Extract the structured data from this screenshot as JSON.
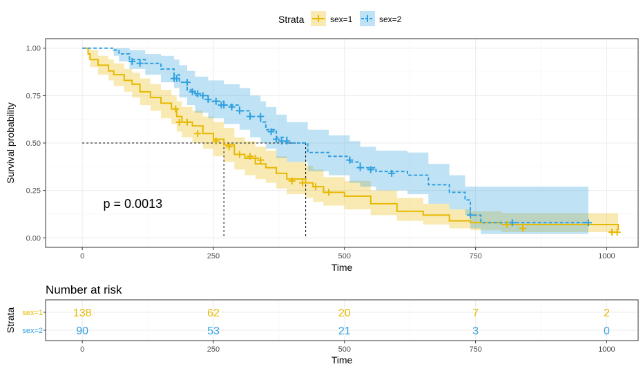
{
  "chart_data": [
    {
      "type": "line",
      "subtype": "kaplan-meier",
      "xlabel": "Time",
      "ylabel": "Survival probability",
      "xlim": [
        -70,
        1060
      ],
      "ylim": [
        -0.05,
        1.05
      ],
      "xticks": [
        0,
        250,
        500,
        750,
        1000
      ],
      "xtick_labels": [
        "0",
        "250",
        "500",
        "750",
        "1000"
      ],
      "yticks": [
        0,
        0.25,
        0.5,
        0.75,
        1
      ],
      "ytick_labels": [
        "0.00",
        "0.25",
        "0.50",
        "0.75",
        "1.00"
      ],
      "grid": true,
      "legend": {
        "title": "Strata",
        "position": "top",
        "entries": [
          "sex=1",
          "sex=2"
        ]
      },
      "annotation": "p = 0.0013",
      "median_survival": {
        "y": 0.5,
        "x": [
          270,
          426
        ]
      },
      "series": [
        {
          "name": "sex=1",
          "color": "#E7B800",
          "linestyle": "solid",
          "x": [
            0,
            11,
            15,
            30,
            50,
            60,
            80,
            95,
            110,
            130,
            150,
            170,
            180,
            190,
            210,
            230,
            250,
            270,
            290,
            310,
            330,
            350,
            370,
            390,
            426,
            440,
            460,
            500,
            550,
            600,
            650,
            700,
            740,
            800,
            1022
          ],
          "y": [
            1.0,
            0.97,
            0.94,
            0.91,
            0.88,
            0.86,
            0.83,
            0.81,
            0.77,
            0.74,
            0.71,
            0.68,
            0.64,
            0.61,
            0.59,
            0.55,
            0.52,
            0.49,
            0.44,
            0.42,
            0.39,
            0.37,
            0.34,
            0.31,
            0.29,
            0.27,
            0.24,
            0.22,
            0.18,
            0.14,
            0.12,
            0.09,
            0.08,
            0.07,
            0.04
          ],
          "lower": [
            1.0,
            0.94,
            0.9,
            0.86,
            0.83,
            0.8,
            0.77,
            0.74,
            0.7,
            0.67,
            0.63,
            0.6,
            0.56,
            0.53,
            0.5,
            0.47,
            0.43,
            0.4,
            0.36,
            0.33,
            0.31,
            0.29,
            0.26,
            0.23,
            0.21,
            0.19,
            0.17,
            0.15,
            0.12,
            0.09,
            0.07,
            0.05,
            0.04,
            0.03,
            0.01
          ],
          "upper": [
            1.0,
            1.0,
            0.99,
            0.96,
            0.94,
            0.92,
            0.89,
            0.87,
            0.84,
            0.81,
            0.78,
            0.75,
            0.72,
            0.69,
            0.67,
            0.64,
            0.61,
            0.58,
            0.53,
            0.51,
            0.48,
            0.46,
            0.43,
            0.4,
            0.38,
            0.36,
            0.32,
            0.3,
            0.25,
            0.21,
            0.18,
            0.15,
            0.14,
            0.13,
            0.12
          ],
          "censor_x": [
            178,
            185,
            200,
            220,
            255,
            280,
            300,
            320,
            330,
            340,
            400,
            420,
            445,
            470,
            810,
            840,
            1010,
            1020
          ],
          "censor_y": [
            0.68,
            0.61,
            0.61,
            0.55,
            0.51,
            0.48,
            0.44,
            0.43,
            0.42,
            0.41,
            0.3,
            0.29,
            0.27,
            0.24,
            0.07,
            0.05,
            0.03,
            0.03
          ]
        },
        {
          "name": "sex=2",
          "color": "#2E9FDF",
          "linestyle": "dashed",
          "x": [
            0,
            60,
            70,
            90,
            120,
            150,
            175,
            185,
            200,
            215,
            240,
            270,
            300,
            320,
            340,
            350,
            370,
            390,
            430,
            470,
            510,
            530,
            560,
            620,
            660,
            700,
            730,
            740,
            760,
            965
          ],
          "y": [
            1.0,
            0.99,
            0.97,
            0.94,
            0.92,
            0.89,
            0.86,
            0.82,
            0.78,
            0.75,
            0.72,
            0.7,
            0.67,
            0.64,
            0.61,
            0.57,
            0.53,
            0.5,
            0.45,
            0.43,
            0.4,
            0.37,
            0.35,
            0.33,
            0.28,
            0.24,
            0.2,
            0.12,
            0.08,
            0.08
          ],
          "lower": [
            1.0,
            0.96,
            0.93,
            0.89,
            0.86,
            0.82,
            0.79,
            0.74,
            0.7,
            0.66,
            0.63,
            0.6,
            0.57,
            0.53,
            0.5,
            0.47,
            0.42,
            0.4,
            0.35,
            0.33,
            0.29,
            0.27,
            0.25,
            0.23,
            0.18,
            0.15,
            0.12,
            0.05,
            0.02,
            0.02
          ],
          "upper": [
            1.0,
            1.0,
            1.0,
            0.99,
            0.97,
            0.96,
            0.94,
            0.91,
            0.88,
            0.85,
            0.83,
            0.81,
            0.79,
            0.75,
            0.72,
            0.69,
            0.65,
            0.61,
            0.57,
            0.54,
            0.51,
            0.48,
            0.46,
            0.45,
            0.39,
            0.33,
            0.27,
            0.27,
            0.27,
            0.27
          ],
          "censor_x": [
            95,
            110,
            175,
            180,
            200,
            210,
            220,
            230,
            240,
            255,
            265,
            270,
            285,
            300,
            320,
            340,
            360,
            370,
            380,
            390,
            510,
            530,
            550,
            590,
            740,
            820,
            965
          ],
          "censor_y": [
            0.93,
            0.92,
            0.84,
            0.84,
            0.82,
            0.77,
            0.76,
            0.75,
            0.73,
            0.72,
            0.7,
            0.7,
            0.69,
            0.67,
            0.64,
            0.64,
            0.56,
            0.52,
            0.51,
            0.51,
            0.41,
            0.37,
            0.36,
            0.34,
            0.12,
            0.08,
            0.08
          ]
        }
      ]
    },
    {
      "type": "table",
      "title": "Number at risk",
      "xlabel": "Time",
      "ylabel": "Strata",
      "x": [
        0,
        250,
        500,
        750,
        1000
      ],
      "xtick_labels": [
        "0",
        "250",
        "500",
        "750",
        "1000"
      ],
      "rows": [
        {
          "label": "sex=1",
          "color": "#E7B800",
          "values": [
            "138",
            "62",
            "20",
            "7",
            "2"
          ]
        },
        {
          "label": "sex=2",
          "color": "#2E9FDF",
          "values": [
            "90",
            "53",
            "21",
            "3",
            "0"
          ]
        }
      ]
    }
  ]
}
